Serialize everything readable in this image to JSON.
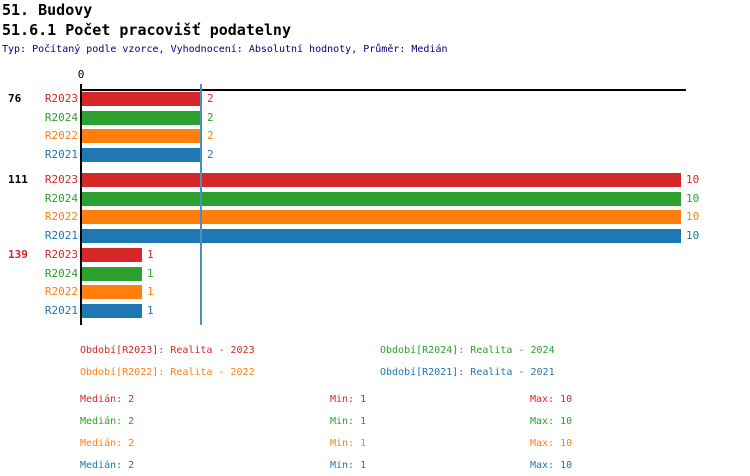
{
  "header": {
    "title": "51. Budovy",
    "subtitle": "51.6.1 Počet pracovišť podatelny",
    "meta": "Typ: Počítaný podle vzorce, Vyhodnocení: Absolutní hodnoty, Průměr: Medián"
  },
  "chart_data": {
    "type": "bar",
    "orientation": "horizontal",
    "origin_tick_label": "0",
    "xlim": [
      0,
      10
    ],
    "series_order": [
      "R2023",
      "R2024",
      "R2022",
      "R2021"
    ],
    "series_colors": {
      "R2023": "#d62728",
      "R2024": "#2ca02c",
      "R2022": "#ff7f0e",
      "R2021": "#1f77b4"
    },
    "groups": [
      {
        "label": "76",
        "label_color": "#000000",
        "rows": [
          {
            "series": "R2023",
            "value": 2
          },
          {
            "series": "R2024",
            "value": 2
          },
          {
            "series": "R2022",
            "value": 2
          },
          {
            "series": "R2021",
            "value": 2
          }
        ]
      },
      {
        "label": "111",
        "label_color": "#000000",
        "rows": [
          {
            "series": "R2023",
            "value": 10
          },
          {
            "series": "R2024",
            "value": 10
          },
          {
            "series": "R2022",
            "value": 10
          },
          {
            "series": "R2021",
            "value": 10
          }
        ]
      },
      {
        "label": "139",
        "label_color": "#d62728",
        "rows": [
          {
            "series": "R2023",
            "value": 1
          },
          {
            "series": "R2024",
            "value": 1
          },
          {
            "series": "R2022",
            "value": 1
          },
          {
            "series": "R2021",
            "value": 1
          }
        ]
      }
    ],
    "median_line": {
      "value": 2,
      "color": "#4a90c2"
    }
  },
  "legend": {
    "items": [
      {
        "series": "R2023",
        "text": "Období[R2023]: Realita - 2023"
      },
      {
        "series": "R2024",
        "text": "Období[R2024]: Realita - 2024"
      },
      {
        "series": "R2022",
        "text": "Období[R2022]: Realita - 2022"
      },
      {
        "series": "R2021",
        "text": "Období[R2021]: Realita - 2021"
      }
    ]
  },
  "stats": {
    "rows": [
      {
        "series": "R2023",
        "median": "Medián: 2",
        "min": "Min: 1",
        "max": "Max: 10"
      },
      {
        "series": "R2024",
        "median": "Medián: 2",
        "min": "Min: 1",
        "max": "Max: 10"
      },
      {
        "series": "R2022",
        "median": "Medián: 2",
        "min": "Min: 1",
        "max": "Max: 10"
      },
      {
        "series": "R2021",
        "median": "Medián: 2",
        "min": "Min: 1",
        "max": "Max: 10"
      }
    ]
  }
}
